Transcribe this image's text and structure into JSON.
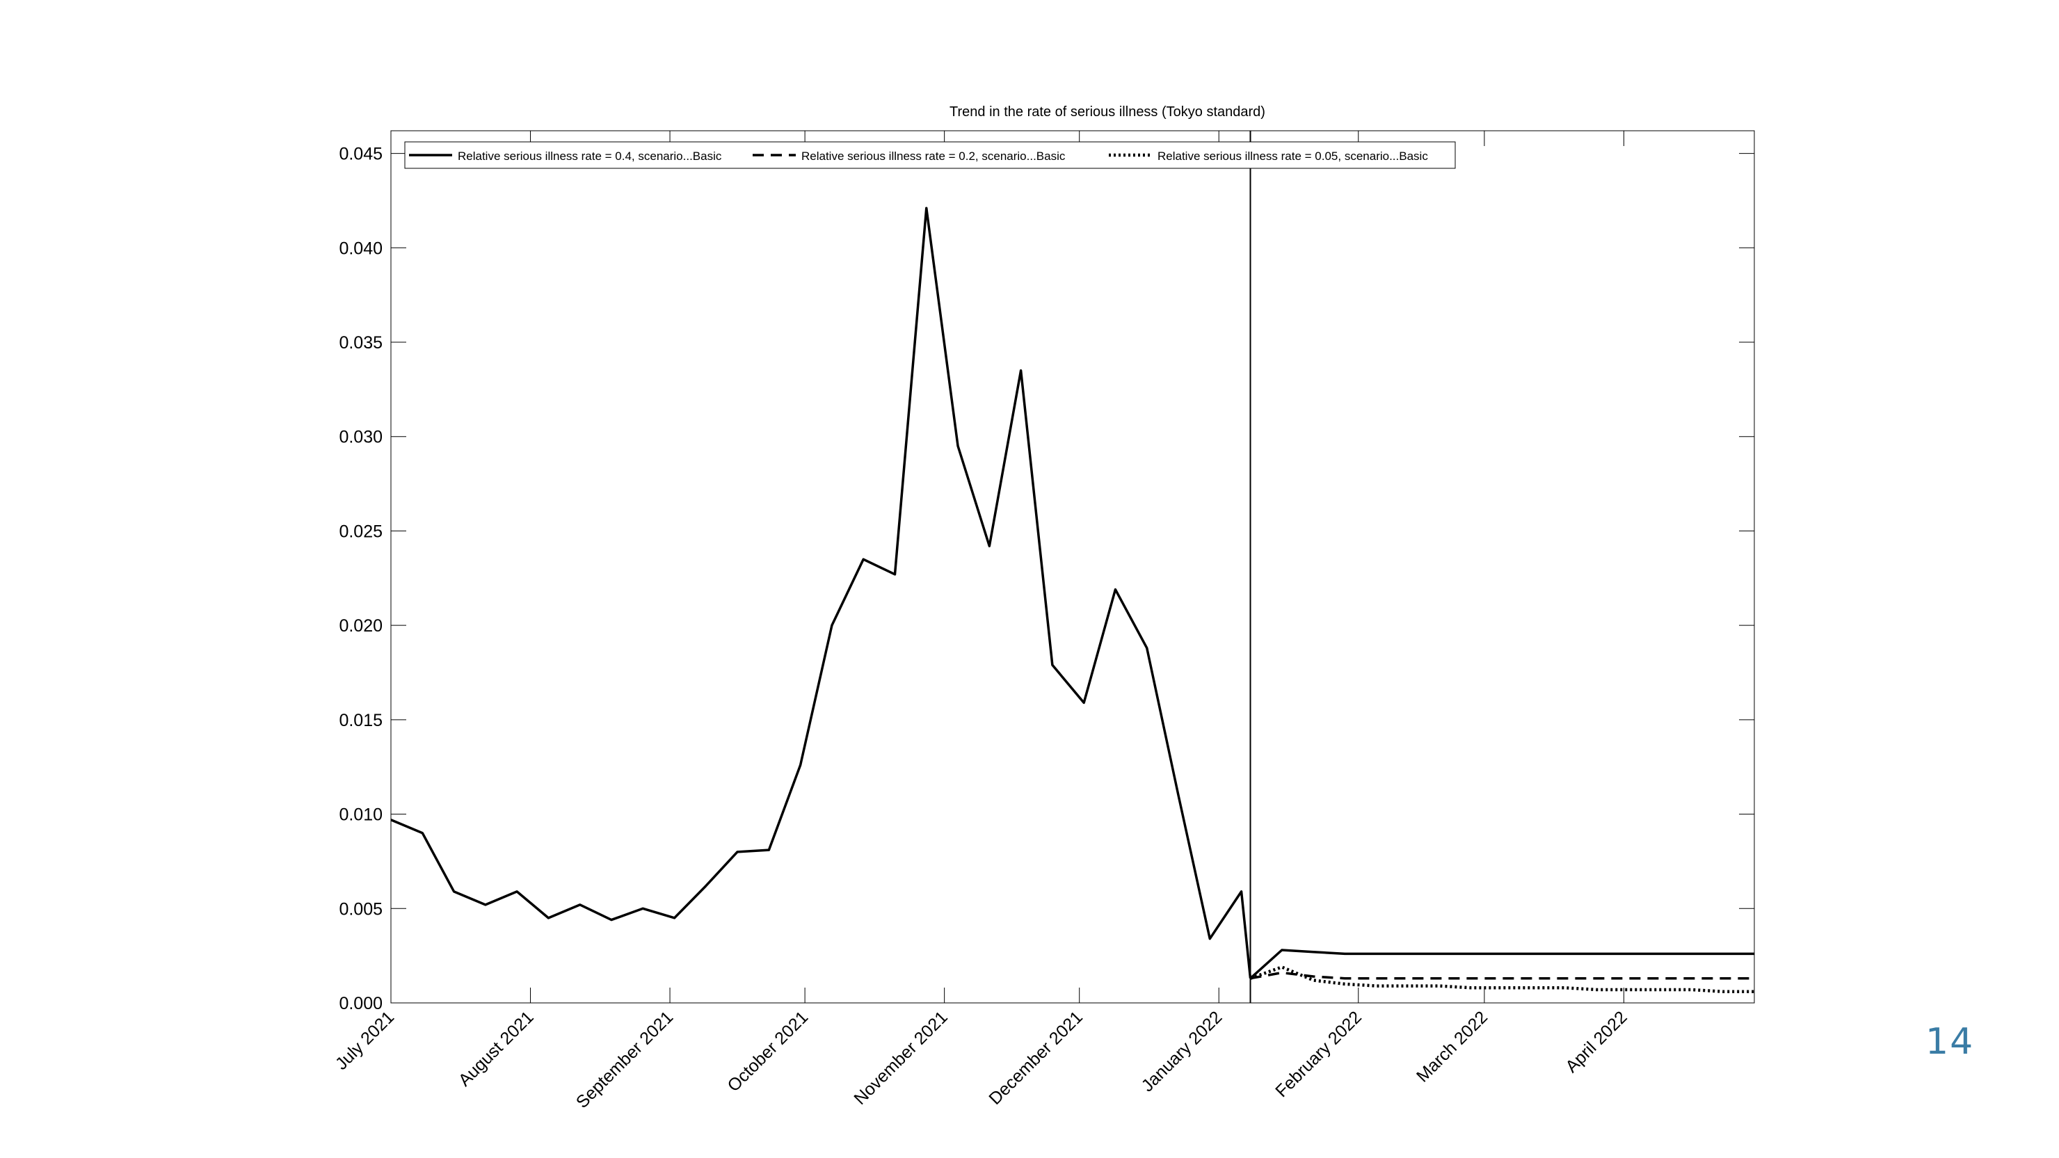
{
  "slide": {
    "page_number": "14"
  },
  "chart_data": {
    "type": "line",
    "title": "Trend in the rate of serious illness (Tokyo standard)",
    "xlabel": "",
    "ylabel": "",
    "ylim": [
      0,
      0.0462
    ],
    "xlim": [
      "2021-07-01",
      "2022-04-30"
    ],
    "grid": false,
    "legend_position": "top",
    "y_ticks": [
      "0.000",
      "0.005",
      "0.010",
      "0.015",
      "0.020",
      "0.025",
      "0.030",
      "0.035",
      "0.040",
      "0.045"
    ],
    "x_ticks": [
      {
        "date": "2021-07-01",
        "label": "July 2021"
      },
      {
        "date": "2021-08-01",
        "label": "August 2021"
      },
      {
        "date": "2021-09-01",
        "label": "September 2021"
      },
      {
        "date": "2021-10-01",
        "label": "October 2021"
      },
      {
        "date": "2021-11-01",
        "label": "November 2021"
      },
      {
        "date": "2021-12-01",
        "label": "December 2021"
      },
      {
        "date": "2022-01-01",
        "label": "January 2022"
      },
      {
        "date": "2022-02-01",
        "label": "February 2022"
      },
      {
        "date": "2022-03-01",
        "label": "March 2022"
      },
      {
        "date": "2022-04-01",
        "label": "April 2022"
      }
    ],
    "reference_line": {
      "date": "2022-01-08"
    },
    "observed": {
      "dates": [
        "2021-07-01",
        "2021-07-08",
        "2021-07-15",
        "2021-07-22",
        "2021-07-29",
        "2021-08-05",
        "2021-08-12",
        "2021-08-19",
        "2021-08-26",
        "2021-09-02",
        "2021-09-09",
        "2021-09-16",
        "2021-09-23",
        "2021-09-30",
        "2021-10-07",
        "2021-10-14",
        "2021-10-21",
        "2021-10-28",
        "2021-11-04",
        "2021-11-11",
        "2021-11-18",
        "2021-11-25",
        "2021-12-02",
        "2021-12-09",
        "2021-12-16",
        "2021-12-23",
        "2021-12-30",
        "2022-01-06",
        "2022-01-08"
      ],
      "values": [
        0.0097,
        0.009,
        0.0059,
        0.0052,
        0.0059,
        0.0045,
        0.0052,
        0.0044,
        0.005,
        0.0045,
        0.0062,
        0.008,
        0.0081,
        0.0126,
        0.02,
        0.0235,
        0.0227,
        0.0421,
        0.0295,
        0.0242,
        0.0335,
        0.0179,
        0.0159,
        0.0219,
        0.0188,
        0.011,
        0.0034,
        0.0059,
        0.0013
      ]
    },
    "series": [
      {
        "name": "Relative serious illness rate = 0.4, scenario...Basic",
        "style": "solid",
        "dates": [
          "2022-01-08",
          "2022-01-15",
          "2022-01-22",
          "2022-01-29",
          "2022-02-05",
          "2022-02-12",
          "2022-02-19",
          "2022-02-26",
          "2022-03-05",
          "2022-03-12",
          "2022-03-19",
          "2022-03-26",
          "2022-04-02",
          "2022-04-09",
          "2022-04-16",
          "2022-04-23",
          "2022-04-30"
        ],
        "values": [
          0.0013,
          0.0028,
          0.0027,
          0.0026,
          0.0026,
          0.0026,
          0.0026,
          0.0026,
          0.0026,
          0.0026,
          0.0026,
          0.0026,
          0.0026,
          0.0026,
          0.0026,
          0.0026,
          0.0026
        ]
      },
      {
        "name": "Relative serious illness rate = 0.2, scenario...Basic",
        "style": "dashed",
        "dates": [
          "2022-01-08",
          "2022-01-15",
          "2022-01-22",
          "2022-01-29",
          "2022-02-05",
          "2022-02-12",
          "2022-02-19",
          "2022-02-26",
          "2022-03-05",
          "2022-03-12",
          "2022-03-19",
          "2022-03-26",
          "2022-04-02",
          "2022-04-09",
          "2022-04-16",
          "2022-04-23",
          "2022-04-30"
        ],
        "values": [
          0.0013,
          0.0016,
          0.0014,
          0.0013,
          0.0013,
          0.0013,
          0.0013,
          0.0013,
          0.0013,
          0.0013,
          0.0013,
          0.0013,
          0.0013,
          0.0013,
          0.0013,
          0.0013,
          0.0013
        ]
      },
      {
        "name": "Relative serious illness rate = 0.05, scenario...Basic",
        "style": "dotted",
        "dates": [
          "2022-01-08",
          "2022-01-15",
          "2022-01-22",
          "2022-01-29",
          "2022-02-05",
          "2022-02-12",
          "2022-02-19",
          "2022-02-26",
          "2022-03-05",
          "2022-03-12",
          "2022-03-19",
          "2022-03-26",
          "2022-04-02",
          "2022-04-09",
          "2022-04-16",
          "2022-04-23",
          "2022-04-30"
        ],
        "values": [
          0.0013,
          0.0019,
          0.0012,
          0.001,
          0.0009,
          0.0009,
          0.0009,
          0.0008,
          0.0008,
          0.0008,
          0.0008,
          0.0007,
          0.0007,
          0.0007,
          0.0007,
          0.0006,
          0.0006
        ]
      }
    ]
  }
}
